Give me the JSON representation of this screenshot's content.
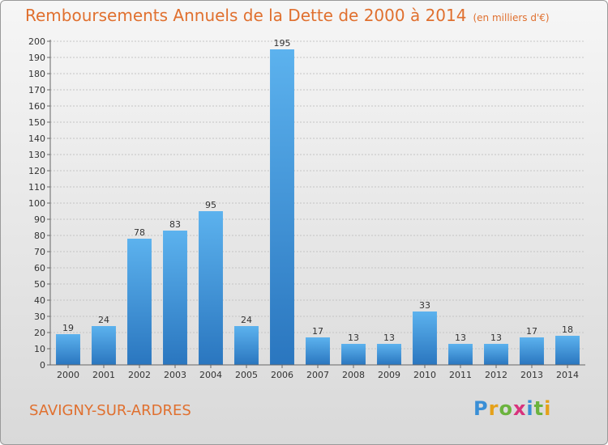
{
  "page": {
    "title": "Remboursements Annuels de la Dette de 2000 à 2014",
    "subtitle": "(en milliers d'€)",
    "commune": "SAVIGNY-SUR-ARDRES",
    "logo_letters": [
      {
        "ch": "P",
        "color": "#3a8fd6"
      },
      {
        "ch": "r",
        "color": "#e5a11a"
      },
      {
        "ch": "o",
        "color": "#6bb33e"
      },
      {
        "ch": "x",
        "color": "#d8327c"
      },
      {
        "ch": "i",
        "color": "#3a8fd6"
      },
      {
        "ch": "t",
        "color": "#6bb33e"
      },
      {
        "ch": "i",
        "color": "#e5a11a"
      }
    ]
  },
  "chart_data": {
    "type": "bar",
    "title": "Remboursements Annuels de la Dette de 2000 à 2014",
    "subtitle": "(en milliers d'€)",
    "categories": [
      "2000",
      "2001",
      "2002",
      "2003",
      "2004",
      "2005",
      "2006",
      "2007",
      "2008",
      "2009",
      "2010",
      "2011",
      "2012",
      "2013",
      "2014"
    ],
    "values": [
      19,
      24,
      78,
      83,
      95,
      24,
      195,
      17,
      13,
      13,
      33,
      13,
      13,
      17,
      18
    ],
    "ylim": [
      0,
      200
    ],
    "ytick_step": 10,
    "grid": true,
    "bar_color": "#4aa3e6",
    "bar_color_dark": "#2a76bf",
    "title_color": "#e0702f"
  }
}
